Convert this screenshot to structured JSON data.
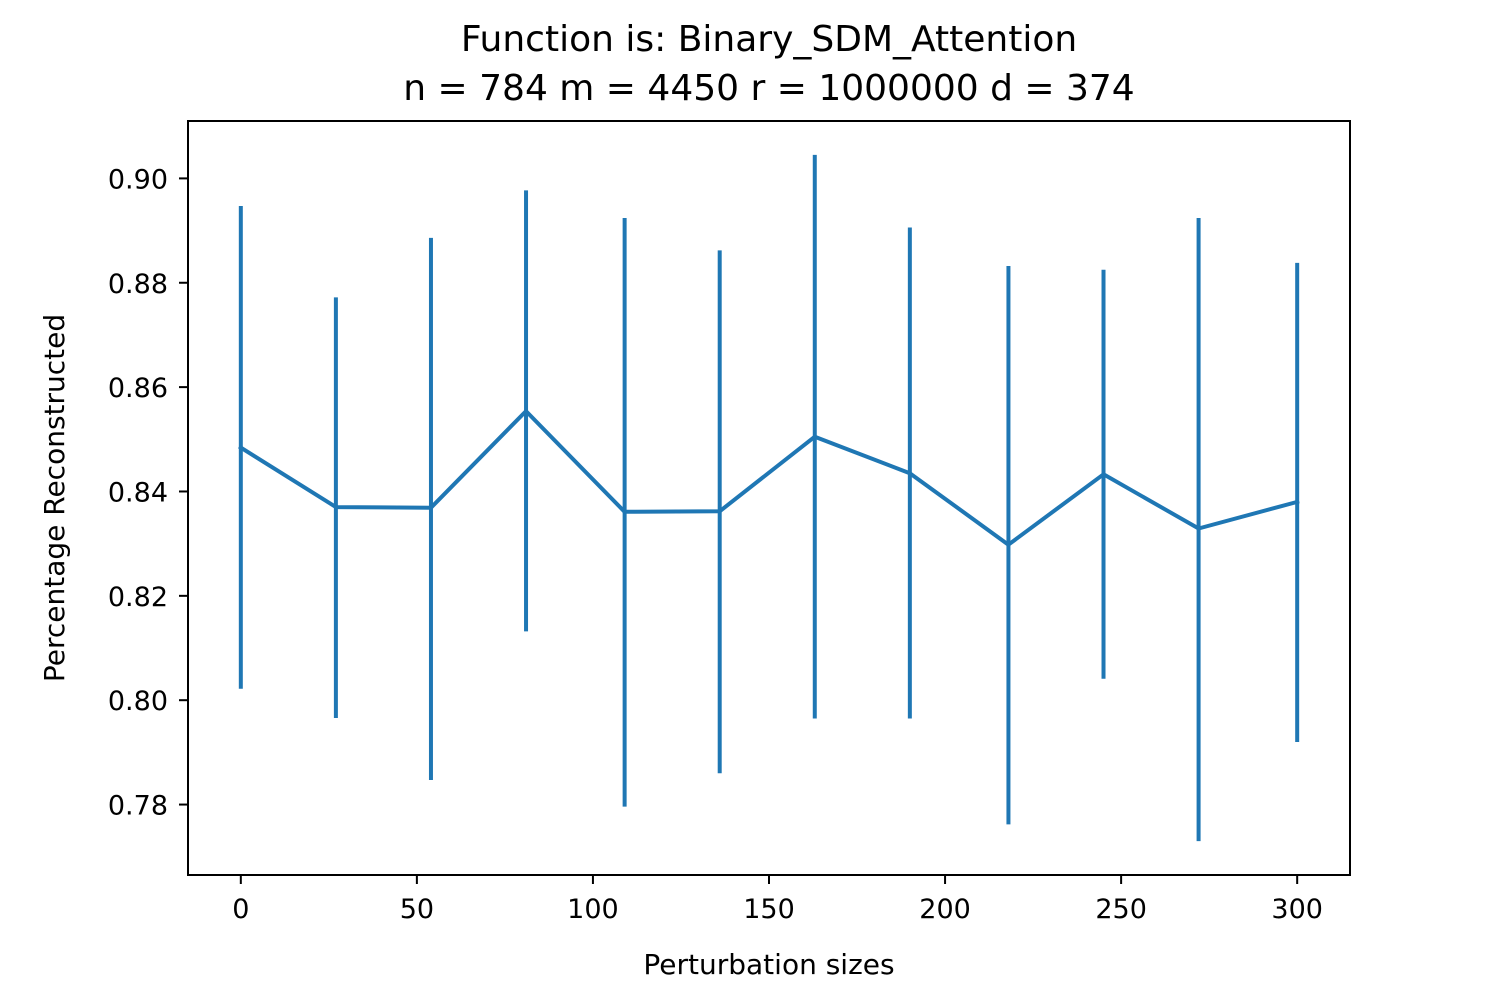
{
  "chart_data": {
    "type": "line",
    "title": "Function is: Binary_SDM_Attention",
    "subtitle": "n = 784 m = 4450 r = 1000000 d = 374",
    "xlabel": "Perturbation sizes",
    "ylabel": "Percentage Reconstructed",
    "xlim": [
      -15,
      315
    ],
    "ylim": [
      0.7665,
      0.911
    ],
    "x_ticks": [
      0,
      50,
      100,
      150,
      200,
      250,
      300
    ],
    "x_tick_labels": [
      "0",
      "50",
      "100",
      "150",
      "200",
      "250",
      "300"
    ],
    "y_ticks": [
      0.78,
      0.8,
      0.82,
      0.84,
      0.86,
      0.88,
      0.9
    ],
    "y_tick_labels": [
      "0.78",
      "0.80",
      "0.82",
      "0.84",
      "0.86",
      "0.88",
      "0.90"
    ],
    "grid": false,
    "series": [
      {
        "color": "#1f77b4",
        "x": [
          0,
          27,
          54,
          81,
          109,
          136,
          163,
          190,
          218,
          245,
          272,
          300
        ],
        "y": [
          0.8484,
          0.837,
          0.8369,
          0.8554,
          0.8361,
          0.8362,
          0.8505,
          0.8435,
          0.8298,
          0.8433,
          0.8329,
          0.838
        ],
        "y_lower": [
          0.8022,
          0.7966,
          0.7847,
          0.8132,
          0.7796,
          0.786,
          0.7965,
          0.7965,
          0.7762,
          0.8041,
          0.773,
          0.792
        ],
        "y_upper": [
          0.8947,
          0.8772,
          0.8886,
          0.8977,
          0.8924,
          0.8862,
          0.9045,
          0.8906,
          0.8832,
          0.8825,
          0.8924,
          0.8838
        ]
      }
    ]
  }
}
